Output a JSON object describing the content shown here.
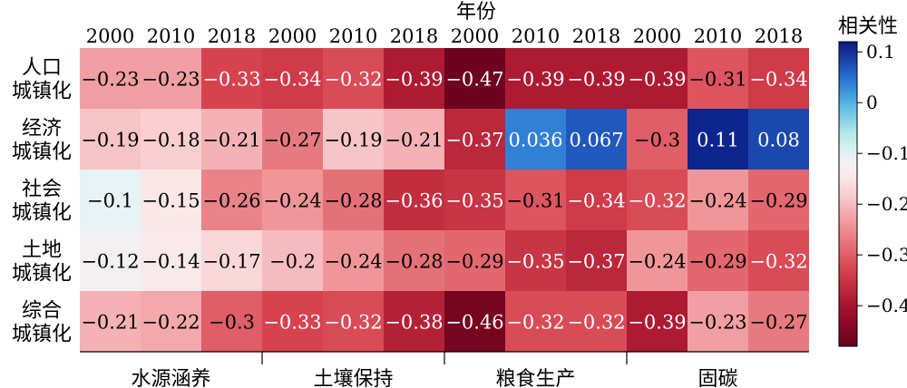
{
  "chart_data": {
    "type": "heatmap",
    "title": "",
    "xlabel": "年份",
    "colorbar_label": "相关性",
    "years": [
      "2000",
      "2010",
      "2018",
      "2000",
      "2010",
      "2018",
      "2000",
      "2010",
      "2018",
      "2000",
      "2010",
      "2018"
    ],
    "groups": [
      "水源涵养",
      "土壤保持",
      "粮食生产",
      "固碳"
    ],
    "rows": [
      {
        "label": [
          "人口",
          "城镇化"
        ],
        "values": [
          -0.23,
          -0.23,
          -0.33,
          -0.34,
          -0.32,
          -0.39,
          -0.47,
          -0.39,
          -0.39,
          -0.39,
          -0.31,
          -0.34
        ]
      },
      {
        "label": [
          "经济",
          "城镇化"
        ],
        "values": [
          -0.19,
          -0.18,
          -0.21,
          -0.27,
          -0.19,
          -0.21,
          -0.37,
          0.036,
          0.067,
          -0.3,
          0.11,
          0.08
        ]
      },
      {
        "label": [
          "社会",
          "城镇化"
        ],
        "values": [
          -0.1,
          -0.15,
          -0.26,
          -0.24,
          -0.28,
          -0.36,
          -0.35,
          -0.31,
          -0.34,
          -0.32,
          -0.24,
          -0.29
        ]
      },
      {
        "label": [
          "土地",
          "城镇化"
        ],
        "values": [
          -0.12,
          -0.14,
          -0.17,
          -0.2,
          -0.24,
          -0.28,
          -0.29,
          -0.35,
          -0.37,
          -0.24,
          -0.29,
          -0.32
        ]
      },
      {
        "label": [
          "综合",
          "城镇化"
        ],
        "values": [
          -0.21,
          -0.22,
          -0.3,
          -0.33,
          -0.32,
          -0.38,
          -0.46,
          -0.32,
          -0.32,
          -0.39,
          -0.23,
          -0.27
        ]
      }
    ],
    "value_labels": [
      [
        "−0.23",
        "−0.23",
        "−0.33",
        "−0.34",
        "−0.32",
        "−0.39",
        "−0.47",
        "−0.39",
        "−0.39",
        "−0.39",
        "−0.31",
        "−0.34"
      ],
      [
        "−0.19",
        "−0.18",
        "−0.21",
        "−0.27",
        "−0.19",
        "−0.21",
        "−0.37",
        "0.036",
        "0.067",
        "−0.3",
        "0.11",
        "0.08"
      ],
      [
        "−0.1",
        "−0.15",
        "−0.26",
        "−0.24",
        "−0.28",
        "−0.36",
        "−0.35",
        "−0.31",
        "−0.34",
        "−0.32",
        "−0.24",
        "−0.29"
      ],
      [
        "−0.12",
        "−0.14",
        "−0.17",
        "−0.2",
        "−0.24",
        "−0.28",
        "−0.29",
        "−0.35",
        "−0.37",
        "−0.24",
        "−0.29",
        "−0.32"
      ],
      [
        "−0.21",
        "−0.22",
        "−0.3",
        "−0.33",
        "−0.32",
        "−0.38",
        "−0.46",
        "−0.32",
        "−0.32",
        "−0.39",
        "−0.23",
        "−0.27"
      ]
    ],
    "colorbar_ticks": [
      {
        "value": 0.1,
        "label": "0.1"
      },
      {
        "value": 0,
        "label": "0"
      },
      {
        "value": -0.1,
        "label": "−0.1"
      },
      {
        "value": -0.2,
        "label": "−0.2"
      },
      {
        "value": -0.3,
        "label": "−0.3"
      },
      {
        "value": -0.4,
        "label": "−0.4"
      }
    ],
    "vlim": [
      -0.48,
      0.12
    ],
    "colormap": "red-white-blue (RdBu)",
    "colors": {
      "low": "#67001f",
      "mid_low": "#d6424e",
      "near_neutral": "#f4f0f2",
      "mid_high": "#3a88d6",
      "high": "#0a1f86"
    }
  }
}
